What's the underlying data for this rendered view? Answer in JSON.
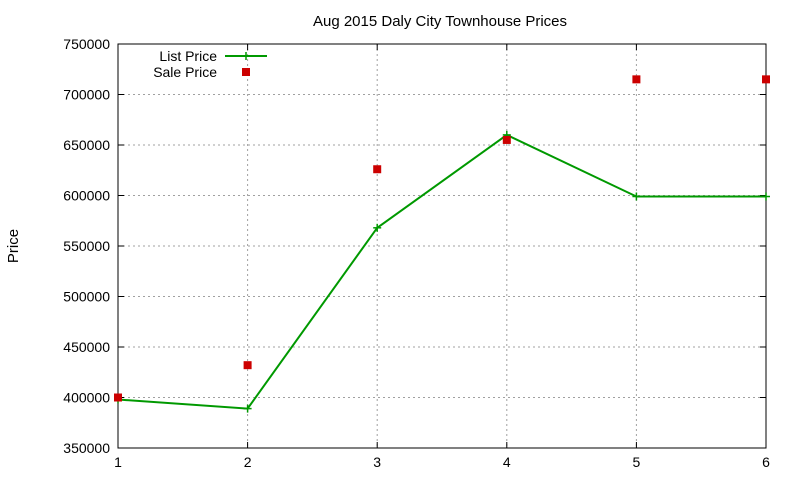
{
  "chart_data": {
    "type": "line",
    "title": "Aug 2015 Daly City Townhouse Prices",
    "xlabel": "",
    "ylabel": "Price",
    "xlim": [
      1,
      6
    ],
    "ylim": [
      350000,
      750000
    ],
    "x_ticks": [
      1,
      2,
      3,
      4,
      5,
      6
    ],
    "y_ticks": [
      350000,
      400000,
      450000,
      500000,
      550000,
      600000,
      650000,
      700000,
      750000
    ],
    "grid": true,
    "legend_position": "top-left",
    "series": [
      {
        "name": "List Price",
        "style": "line-with-plus-markers",
        "color": "#009900",
        "x": [
          1,
          2,
          3,
          4,
          5,
          6
        ],
        "values": [
          398000,
          389000,
          568000,
          660000,
          599000,
          599000
        ]
      },
      {
        "name": "Sale Price",
        "style": "square-markers",
        "color": "#cc0000",
        "x": [
          1,
          2,
          3,
          4,
          5,
          6
        ],
        "values": [
          400000,
          432000,
          626000,
          655000,
          715000,
          715000
        ]
      }
    ]
  }
}
